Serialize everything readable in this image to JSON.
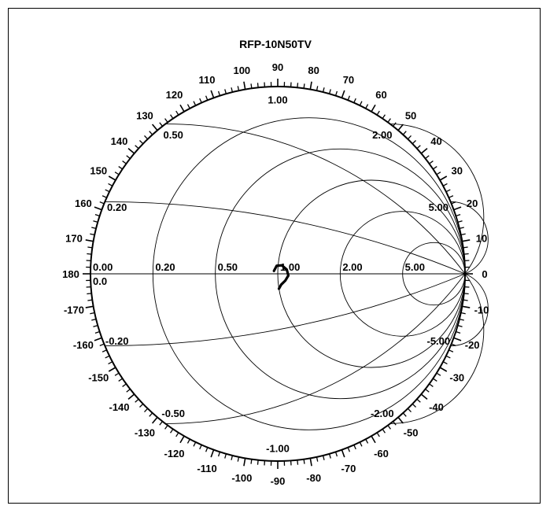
{
  "chart_data": {
    "type": "scatter",
    "projection": "smith",
    "title": "RFP-10N50TV",
    "resistance_circles": [
      0.2,
      0.5,
      1.0,
      2.0,
      5.0
    ],
    "reactance_arcs": [
      0.2,
      0.5,
      1.0,
      2.0,
      5.0,
      -0.2,
      -0.5,
      -1.0,
      -2.0,
      -5.0
    ],
    "resistance_labels": [
      "0.00",
      "0.20",
      "0.50",
      "1.00",
      "2.00",
      "5.00"
    ],
    "zero_reactance_label": "0.0",
    "reactance_labels": [
      {
        "x": 0.2,
        "text": "0.20"
      },
      {
        "x": 0.5,
        "text": "0.50"
      },
      {
        "x": 1.0,
        "text": "1.00"
      },
      {
        "x": 2.0,
        "text": "2.00"
      },
      {
        "x": 5.0,
        "text": "5.00"
      },
      {
        "x": -0.2,
        "text": "-0.20"
      },
      {
        "x": -0.5,
        "text": "-0.50"
      },
      {
        "x": -1.0,
        "text": "-1.00"
      },
      {
        "x": -2.0,
        "text": "-2.00"
      },
      {
        "x": -5.0,
        "text": "-5.00"
      }
    ],
    "angle_labels": [
      {
        "deg": 0,
        "text": "0"
      },
      {
        "deg": 10,
        "text": "10"
      },
      {
        "deg": 20,
        "text": "20"
      },
      {
        "deg": 30,
        "text": "30"
      },
      {
        "deg": 40,
        "text": "40"
      },
      {
        "deg": 50,
        "text": "50"
      },
      {
        "deg": 60,
        "text": "60"
      },
      {
        "deg": 70,
        "text": "70"
      },
      {
        "deg": 80,
        "text": "80"
      },
      {
        "deg": 90,
        "text": "90"
      },
      {
        "deg": 100,
        "text": "100"
      },
      {
        "deg": 110,
        "text": "110"
      },
      {
        "deg": 120,
        "text": "120"
      },
      {
        "deg": 130,
        "text": "130"
      },
      {
        "deg": 140,
        "text": "140"
      },
      {
        "deg": 150,
        "text": "150"
      },
      {
        "deg": 160,
        "text": "160"
      },
      {
        "deg": 170,
        "text": "170"
      },
      {
        "deg": 180,
        "text": "180"
      },
      {
        "deg": -10,
        "text": "-10"
      },
      {
        "deg": -20,
        "text": "-20"
      },
      {
        "deg": -30,
        "text": "-30"
      },
      {
        "deg": -40,
        "text": "-40"
      },
      {
        "deg": -50,
        "text": "-50"
      },
      {
        "deg": -60,
        "text": "-60"
      },
      {
        "deg": -70,
        "text": "-70"
      },
      {
        "deg": -80,
        "text": "-80"
      },
      {
        "deg": -90,
        "text": "-90"
      },
      {
        "deg": -100,
        "text": "-100"
      },
      {
        "deg": -110,
        "text": "-110"
      },
      {
        "deg": -120,
        "text": "-120"
      },
      {
        "deg": -130,
        "text": "-130"
      },
      {
        "deg": -140,
        "text": "-140"
      },
      {
        "deg": -150,
        "text": "-150"
      },
      {
        "deg": -160,
        "text": "-160"
      },
      {
        "deg": -170,
        "text": "-170"
      }
    ],
    "minor_tick_step_deg": 2,
    "series": [
      {
        "impedance_points": [
          {
            "r": 0.96,
            "x": 0.03
          },
          {
            "r": 0.985,
            "x": 0.085
          },
          {
            "r": 1.04,
            "x": 0.095
          },
          {
            "r": 1.1,
            "x": 0.05
          },
          {
            "r": 1.12,
            "x": -0.02
          },
          {
            "r": 1.08,
            "x": -0.08
          },
          {
            "r": 1.03,
            "x": -0.12
          },
          {
            "r": 1.0,
            "x": -0.16
          }
        ]
      }
    ],
    "colors": {
      "grid": "#000000",
      "trace": "#000000",
      "background": "#ffffff"
    }
  }
}
